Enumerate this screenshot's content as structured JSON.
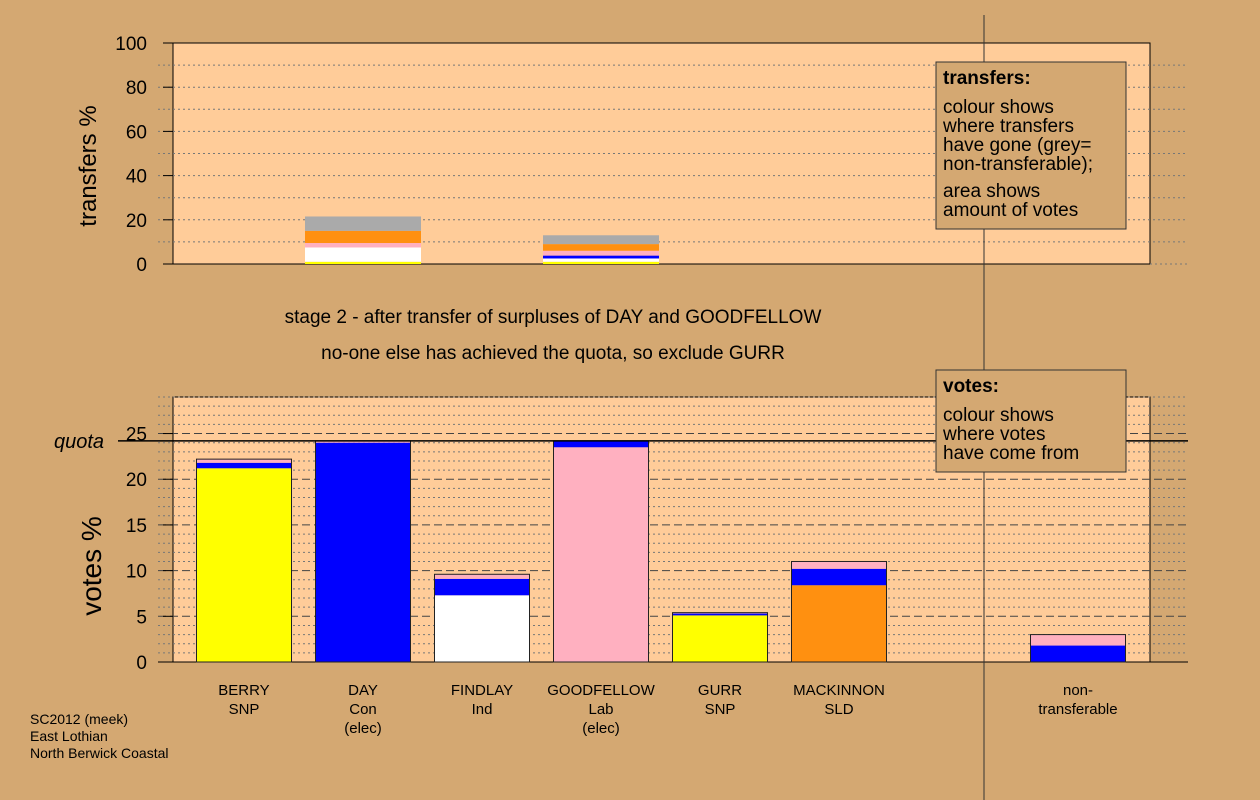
{
  "colors": {
    "background": "#d4a872",
    "plot_background": "#ffcc99",
    "Con": "#0000ff",
    "SNP": "#ffff00",
    "Ind": "#ffffff",
    "Lab": "#ffb0c0",
    "SLD": "#ff9010",
    "non_transferable": "#aaaaaa"
  },
  "subtitles": {
    "line1": "stage 2 - after transfer of surpluses of DAY and GOODFELLOW",
    "line2": "no-one else has achieved the quota, so exclude GURR"
  },
  "footer": {
    "line1": "SC2012 (meek)",
    "line2": "East Lothian",
    "line3": "North Berwick Coastal"
  },
  "chart_data": [
    {
      "type": "bar",
      "name": "transfers",
      "ylabel": "transfers %",
      "ylim": [
        0,
        100
      ],
      "yticks": [
        0,
        20,
        40,
        60,
        80,
        100
      ],
      "grid": true,
      "legend": {
        "placement": "top-right",
        "title": "transfers:",
        "lines": [
          "colour shows",
          "where transfers",
          "have gone (grey=",
          "non-transferable);",
          "area shows",
          "amount of votes"
        ]
      },
      "categories": [
        "DAY",
        "GOODFELLOW"
      ],
      "stacks": [
        {
          "category": "DAY",
          "segments": [
            {
              "to": "SNP",
              "value": 1.0
            },
            {
              "to": "Ind",
              "value": 6.5
            },
            {
              "to": "Lab",
              "value": 2.0
            },
            {
              "to": "SLD",
              "value": 5.5
            },
            {
              "to": "non_transferable",
              "value": 6.5
            }
          ]
        },
        {
          "category": "GOODFELLOW",
          "segments": [
            {
              "to": "SNP",
              "value": 1.0
            },
            {
              "to": "Ind",
              "value": 1.5
            },
            {
              "to": "Con",
              "value": 1.3
            },
            {
              "to": "Lab",
              "value": 2.2
            },
            {
              "to": "SLD",
              "value": 3.0
            },
            {
              "to": "non_transferable",
              "value": 4.0
            }
          ]
        }
      ]
    },
    {
      "type": "bar",
      "name": "votes",
      "ylabel": "votes %",
      "ylim": [
        0,
        29
      ],
      "yticks": [
        0,
        5,
        10,
        15,
        20,
        25
      ],
      "quota": 24.2,
      "quota_label": "quota",
      "grid": true,
      "legend": {
        "placement": "top-right",
        "title": "votes:",
        "lines": [
          "colour shows",
          "where votes",
          "have come from"
        ]
      },
      "candidates": [
        {
          "name": "BERRY",
          "party": "SNP",
          "note": "",
          "segments": [
            {
              "from": "SNP",
              "value": 21.2
            },
            {
              "from": "Con",
              "value": 0.6
            },
            {
              "from": "Lab",
              "value": 0.4
            }
          ]
        },
        {
          "name": "DAY",
          "party": "Con",
          "note": "(elec)",
          "segments": [
            {
              "from": "Con",
              "value": 24.0
            },
            {
              "from": "Lab",
              "value": 0.2
            }
          ]
        },
        {
          "name": "FINDLAY",
          "party": "Ind",
          "note": "",
          "segments": [
            {
              "from": "Ind",
              "value": 7.3
            },
            {
              "from": "Con",
              "value": 1.8
            },
            {
              "from": "Lab",
              "value": 0.5
            }
          ]
        },
        {
          "name": "GOODFELLOW",
          "party": "Lab",
          "note": "(elec)",
          "segments": [
            {
              "from": "Lab",
              "value": 23.5
            },
            {
              "from": "Con",
              "value": 0.7
            }
          ]
        },
        {
          "name": "GURR",
          "party": "SNP",
          "note": "",
          "segments": [
            {
              "from": "SNP",
              "value": 5.1
            },
            {
              "from": "Con",
              "value": 0.2
            },
            {
              "from": "Lab",
              "value": 0.1
            }
          ]
        },
        {
          "name": "MACKINNON",
          "party": "SLD",
          "note": "",
          "segments": [
            {
              "from": "SLD",
              "value": 8.4
            },
            {
              "from": "Con",
              "value": 1.8
            },
            {
              "from": "Lab",
              "value": 0.8
            }
          ]
        },
        {
          "name": "non-",
          "party": "transferable",
          "note": "",
          "segments": [
            {
              "from": "Con",
              "value": 1.8
            },
            {
              "from": "Lab",
              "value": 1.2
            }
          ]
        }
      ]
    }
  ]
}
